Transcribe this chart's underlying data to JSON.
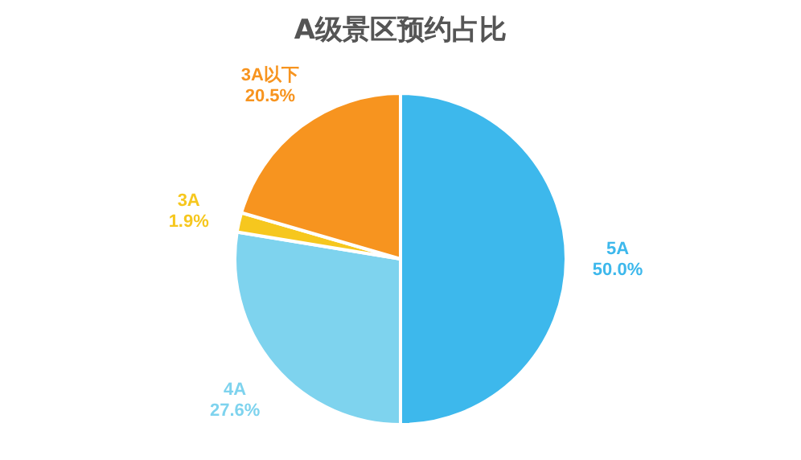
{
  "chart_data": {
    "type": "pie",
    "title": "A级景区预约占比",
    "categories": [
      "5A",
      "4A",
      "3A",
      "3A以下"
    ],
    "values": [
      50.0,
      27.6,
      1.9,
      20.5
    ],
    "value_labels": [
      "50.0%",
      "27.6%",
      "1.9%",
      "20.5%"
    ],
    "colors": [
      "#3db8ec",
      "#7ed3ee",
      "#f6c71e",
      "#f7941f"
    ]
  }
}
